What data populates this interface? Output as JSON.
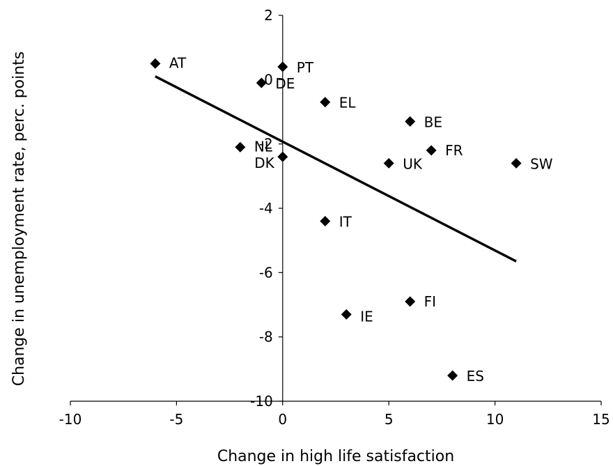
{
  "chart_data": {
    "type": "scatter",
    "title": "",
    "xlabel": "Change in high life satisfaction",
    "ylabel": "Change in unemployment rate, perc. points",
    "xlim": [
      -10,
      15
    ],
    "ylim": [
      -10,
      2
    ],
    "xticks": [
      -10,
      -5,
      0,
      5,
      10,
      15
    ],
    "yticks": [
      -10,
      -8,
      -6,
      -4,
      -2,
      0,
      2
    ],
    "grid": false,
    "legend": "none",
    "marker": "diamond",
    "color": "#000000",
    "points": [
      {
        "label": "AT",
        "x": -6,
        "y": 0.5
      },
      {
        "label": "PT",
        "x": 0,
        "y": 0.4
      },
      {
        "label": "DE",
        "x": -1,
        "y": -0.1
      },
      {
        "label": "EL",
        "x": 2,
        "y": -0.7
      },
      {
        "label": "BE",
        "x": 6,
        "y": -1.3
      },
      {
        "label": "NL",
        "x": -2,
        "y": -2.1
      },
      {
        "label": "DK",
        "x": 0,
        "y": -2.4
      },
      {
        "label": "FR",
        "x": 7,
        "y": -2.2
      },
      {
        "label": "UK",
        "x": 5,
        "y": -2.6
      },
      {
        "label": "SW",
        "x": 11,
        "y": -2.6
      },
      {
        "label": "IT",
        "x": 2,
        "y": -4.4
      },
      {
        "label": "FI",
        "x": 6,
        "y": -6.9
      },
      {
        "label": "IE",
        "x": 3,
        "y": -7.3
      },
      {
        "label": "ES",
        "x": 8,
        "y": -9.2
      }
    ],
    "trendline": {
      "type": "linear",
      "x": [
        -6,
        11
      ],
      "y": [
        0.1,
        -5.65
      ]
    }
  }
}
